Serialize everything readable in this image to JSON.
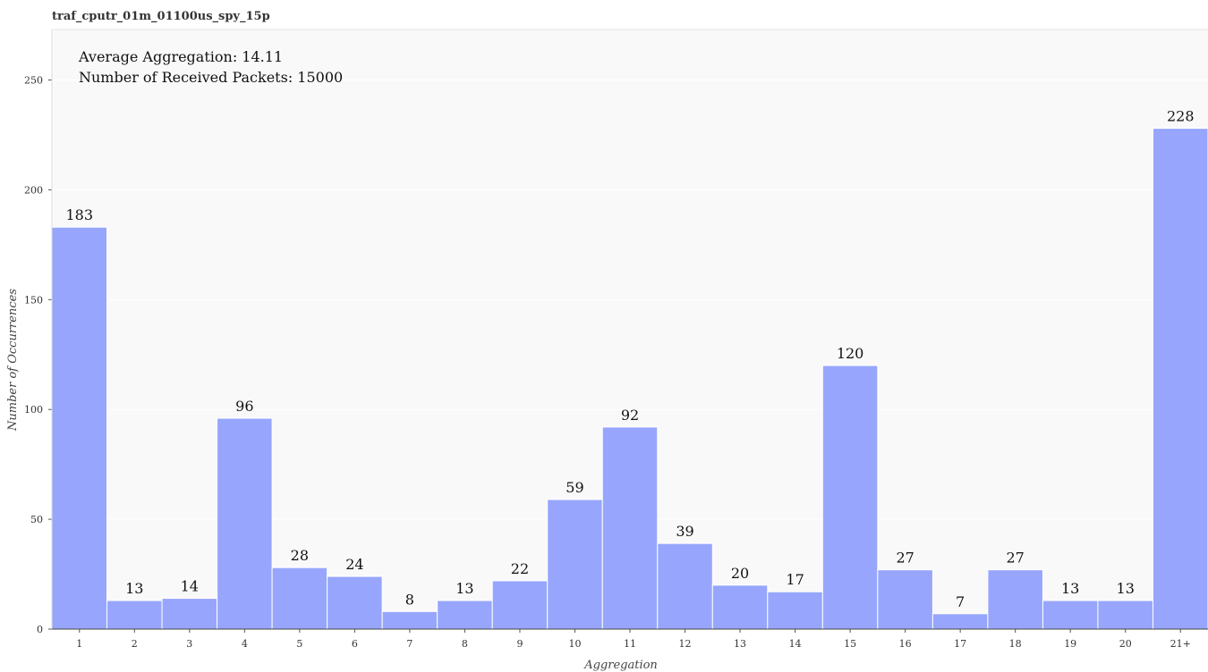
{
  "chart_data": {
    "type": "bar",
    "title": "traf_cputr_01m_01100us_spy_15p",
    "xlabel": "Aggregation",
    "ylabel": "Number of Occurrences",
    "categories": [
      "1",
      "2",
      "3",
      "4",
      "5",
      "6",
      "7",
      "8",
      "9",
      "10",
      "11",
      "12",
      "13",
      "14",
      "15",
      "16",
      "17",
      "18",
      "19",
      "20",
      "21+"
    ],
    "values": [
      183,
      13,
      14,
      96,
      28,
      24,
      8,
      13,
      22,
      59,
      92,
      39,
      20,
      17,
      120,
      27,
      7,
      27,
      13,
      13,
      228
    ],
    "ylim": [
      0,
      273
    ],
    "yticks": [
      0,
      50,
      100,
      150,
      200,
      250
    ],
    "grid": true,
    "annotations": [
      "Average Aggregation: 14.11",
      "Number of Received Packets: 15000"
    ],
    "colors": {
      "bar": "#97a6fc",
      "bar_edge": "#ffffff",
      "plot_bg": "#f9f9f9",
      "grid": "#ffffff"
    }
  }
}
